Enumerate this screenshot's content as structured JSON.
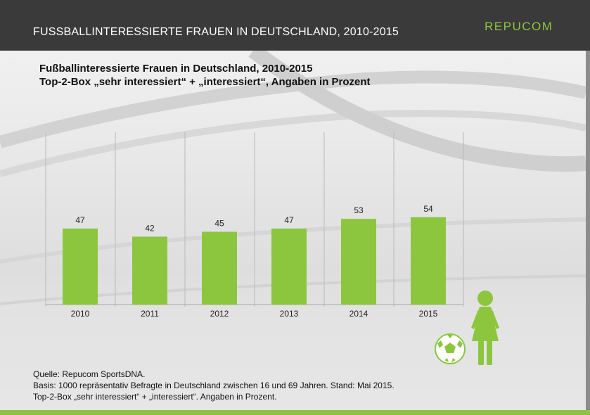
{
  "header": {
    "title": "FUSSBALLINTERESSIERTE FRAUEN IN DEUTSCHLAND, 2010-2015",
    "logo": "REPUCOM"
  },
  "chart_data": {
    "type": "bar",
    "title": "Fußballinteressierte Frauen in Deutschland, 2010-2015",
    "subtitle": "Top-2-Box „sehr interessiert“ + „interessiert“, Angaben in Prozent",
    "categories": [
      "2010",
      "2011",
      "2012",
      "2013",
      "2014",
      "2015"
    ],
    "values": [
      47,
      42,
      45,
      47,
      53,
      54
    ],
    "xlabel": "",
    "ylabel": "",
    "ylim": [
      0,
      100
    ],
    "bar_color": "#8cc63f",
    "grid": "vertical separators"
  },
  "footer": {
    "source": "Quelle: Repucom SportsDNA.",
    "basis": "Basis: 1000 repräsentativ Befragte in Deutschland zwischen 16 und 69 Jahren. Stand: Mai 2015.",
    "note": "Top-2-Box „sehr interessiert“ + „interessiert“. Angaben in Prozent."
  },
  "icons": [
    "soccer-ball-icon",
    "woman-icon"
  ],
  "colors": {
    "accent": "#8cc63f",
    "header": "#3a3a3a"
  }
}
